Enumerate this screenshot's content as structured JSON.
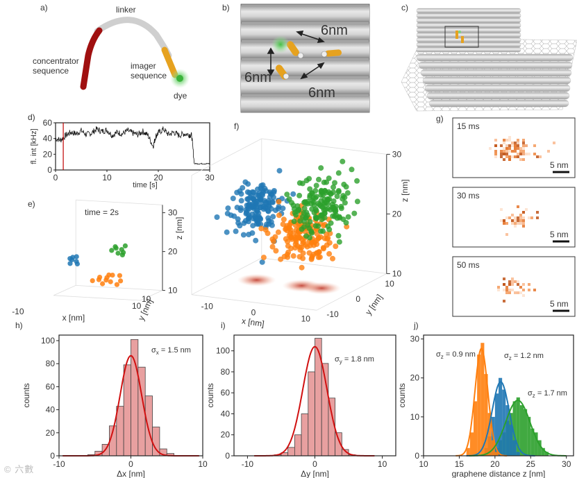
{
  "panels": {
    "a": {
      "label": "a)",
      "linker": "linker",
      "concentrator_line1": "concentrator",
      "concentrator_line2": "sequence",
      "imager_line1": "imager",
      "imager_line2": "sequence",
      "dye": "dye"
    },
    "b": {
      "label": "b)",
      "dist_top": "6nm",
      "dist_left": "6nm",
      "dist_bottom": "6nm"
    },
    "c": {
      "label": "c)"
    },
    "d": {
      "label": "d)"
    },
    "e": {
      "label": "e)",
      "time_text": "time = 2s"
    },
    "f": {
      "label": "f)"
    },
    "g": {
      "label": "g)",
      "frames": [
        {
          "time": "15 ms",
          "scalebar": "5 nm"
        },
        {
          "time": "30 ms",
          "scalebar": "5 nm"
        },
        {
          "time": "50 ms",
          "scalebar": "5 nm"
        }
      ]
    },
    "h": {
      "label": "h)",
      "sigma_sym": "σ",
      "sigma_sub": "x",
      "sigma_val": " = 1.5 nm"
    },
    "i": {
      "label": "i)",
      "sigma_sym": "σ",
      "sigma_sub": "y",
      "sigma_val": " = 1.8 nm"
    },
    "j": {
      "label": "j)",
      "sigmas": [
        {
          "sym": "σ",
          "sub": "z",
          "val": " = 0.9 nm"
        },
        {
          "sym": "σ",
          "sub": "z",
          "val": " = 1.2 nm"
        },
        {
          "sym": "σ",
          "sub": "z",
          "val": " = 1.7 nm"
        }
      ]
    }
  },
  "chart_data": [
    {
      "id": "d",
      "type": "line",
      "xlabel": "time [s]",
      "ylabel": "fl. int [kHz]",
      "xlim": [
        0,
        30
      ],
      "ylim": [
        0,
        60
      ],
      "xticks": [
        0,
        10,
        20,
        30
      ],
      "yticks": [
        0,
        20,
        40,
        60
      ],
      "marker_x": 1.5,
      "x": [
        0,
        1,
        2,
        3,
        4,
        5,
        6,
        7,
        8,
        9,
        10,
        11,
        12,
        13,
        14,
        15,
        16,
        17,
        18,
        19,
        19.5,
        20,
        21,
        22,
        23,
        24,
        25,
        26,
        26.5,
        27,
        28,
        29,
        30
      ],
      "y": [
        40,
        38,
        44,
        48,
        46,
        50,
        45,
        47,
        52,
        49,
        51,
        44,
        48,
        46,
        50,
        47,
        45,
        49,
        44,
        30,
        43,
        47,
        52,
        45,
        48,
        44,
        46,
        45,
        44,
        8,
        8,
        8,
        8
      ]
    },
    {
      "id": "e",
      "type": "scatter",
      "xlabel": "x [nm]",
      "ylabel": "y [nm]",
      "zlabel": "z [nm]",
      "xticks": [
        -10,
        10
      ],
      "yticks": [
        10
      ],
      "zticks": [
        10,
        20,
        30
      ],
      "series": [
        {
          "color": "#1f77b4",
          "points": [
            [
              -12,
              4,
              18
            ],
            [
              -11,
              3,
              19
            ],
            [
              -10.5,
              4,
              17
            ],
            [
              -11.5,
              5,
              18.5
            ],
            [
              -10,
              3,
              18
            ],
            [
              -12.5,
              4,
              17
            ],
            [
              -11,
              2,
              19
            ]
          ]
        },
        {
          "color": "#ff7f0e",
          "points": [
            [
              -3,
              2,
              14
            ],
            [
              -2,
              1,
              15
            ],
            [
              -1,
              2,
              14
            ],
            [
              0,
              3,
              15
            ],
            [
              1,
              1,
              14
            ],
            [
              2,
              2,
              13
            ],
            [
              -1,
              3,
              15
            ],
            [
              -2,
              2,
              13
            ],
            [
              0,
              1,
              15
            ],
            [
              3,
              2,
              14
            ],
            [
              2,
              3,
              15
            ],
            [
              -4,
              1,
              14
            ]
          ]
        },
        {
          "color": "#2ca02c",
          "points": [
            [
              0,
              4,
              22
            ],
            [
              1,
              5,
              21
            ],
            [
              2,
              4,
              20
            ],
            [
              3,
              3,
              21
            ],
            [
              1,
              3,
              22
            ],
            [
              0,
              5,
              20
            ],
            [
              2,
              5,
              22
            ],
            [
              -1,
              4,
              21
            ]
          ]
        }
      ]
    },
    {
      "id": "f",
      "type": "scatter",
      "xlabel": "x [nm]",
      "ylabel": "y [nm]",
      "zlabel": "z [nm]",
      "xticks": [
        -10,
        0,
        10
      ],
      "yticks": [
        -10,
        0,
        10
      ],
      "zticks": [
        10,
        20,
        30
      ],
      "series": [
        {
          "color": "#1f77b4",
          "center": [
            -7,
            0,
            22
          ],
          "spread": 2.2
        },
        {
          "color": "#ff7f0e",
          "center": [
            2,
            0,
            18.5
          ],
          "spread": 2.4
        },
        {
          "color": "#2ca02c",
          "center": [
            6,
            0,
            24
          ],
          "spread": 2.6
        }
      ]
    },
    {
      "id": "h",
      "type": "bar",
      "xlabel": "Δx [nm]",
      "ylabel": "counts",
      "xlim": [
        -10,
        10
      ],
      "ylim": [
        0,
        100
      ],
      "xticks": [
        -10,
        0,
        10
      ],
      "yticks": [
        0,
        20,
        40,
        60,
        80,
        100
      ],
      "bin_width": 1,
      "bin_start": [
        -6,
        -5,
        -4,
        -3,
        -2,
        -1,
        0,
        1,
        2,
        3,
        4,
        5
      ],
      "values": [
        1,
        4,
        10,
        26,
        43,
        79,
        101,
        77,
        52,
        25,
        6,
        2
      ],
      "fit": {
        "mu": 0,
        "sigma": 1.5,
        "amp": 87
      }
    },
    {
      "id": "i",
      "type": "bar",
      "xlabel": "Δy [nm]",
      "ylabel": "counts",
      "xlim": [
        -12,
        12
      ],
      "ylim": [
        0,
        115
      ],
      "xticks": [
        -10,
        0,
        10
      ],
      "yticks": [
        0,
        20,
        40,
        60,
        80,
        100
      ],
      "bin_width": 1,
      "bin_start": [
        -6,
        -5,
        -4,
        -3,
        -2,
        -1,
        0,
        1,
        2,
        3,
        4,
        5
      ],
      "values": [
        1,
        3,
        8,
        20,
        40,
        80,
        112,
        88,
        55,
        22,
        6,
        1
      ],
      "fit": {
        "mu": 0,
        "sigma": 1.8,
        "amp": 104
      }
    },
    {
      "id": "j",
      "type": "bar",
      "xlabel": "graphene distance z [nm]",
      "ylabel": "counts",
      "xlim": [
        10,
        31
      ],
      "ylim": [
        0,
        31
      ],
      "xticks": [
        10,
        15,
        20,
        25,
        30
      ],
      "yticks": [
        0,
        10,
        20,
        30
      ],
      "bin_width": 0.5,
      "series": [
        {
          "color": "#ff7f0e",
          "mu": 18.1,
          "sigma": 0.9,
          "bin_start": [
            16,
            16.5,
            17,
            17.5,
            18,
            18.5,
            19,
            19.5,
            20
          ],
          "values": [
            2,
            6,
            14,
            26,
            29,
            21,
            11,
            4,
            1
          ]
        },
        {
          "color": "#1f77b4",
          "mu": 20.8,
          "sigma": 1.2,
          "bin_start": [
            18.5,
            19,
            19.5,
            20,
            20.5,
            21,
            21.5,
            22,
            22.5,
            23
          ],
          "values": [
            2,
            5,
            10,
            16,
            20,
            17,
            13,
            8,
            4,
            1
          ]
        },
        {
          "color": "#2ca02c",
          "mu": 23.2,
          "sigma": 1.7,
          "bin_start": [
            20,
            20.5,
            21,
            21.5,
            22,
            22.5,
            23,
            23.5,
            24,
            24.5,
            25,
            25.5,
            26,
            26.5,
            27
          ],
          "values": [
            2,
            4,
            6,
            9,
            11,
            14,
            15,
            13,
            12,
            10,
            7,
            6,
            4,
            2,
            1
          ]
        }
      ]
    }
  ]
}
